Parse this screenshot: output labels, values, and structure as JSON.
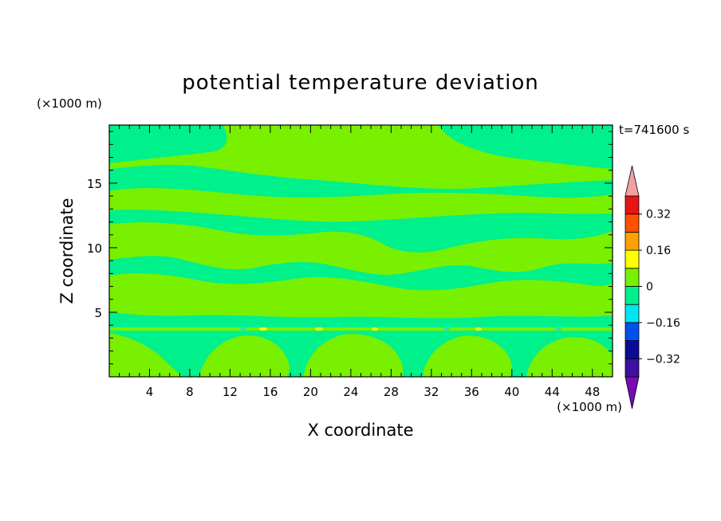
{
  "chart_data": {
    "type": "heatmap",
    "title": "potential temperature deviation",
    "xlabel": "X coordinate",
    "ylabel": "Z coordinate",
    "x_unit": "(×1000 m)",
    "y_unit": "(×1000 m)",
    "time_label": "t=741600 s",
    "xlim": [
      0,
      50
    ],
    "ylim": [
      0,
      19.5
    ],
    "x_ticks": [
      4,
      8,
      12,
      16,
      20,
      24,
      28,
      32,
      36,
      40,
      44,
      48
    ],
    "y_ticks": [
      5,
      10,
      15
    ],
    "colorbar": {
      "levels": [
        -0.4,
        -0.32,
        -0.24,
        -0.16,
        -0.08,
        0,
        0.08,
        0.16,
        0.24,
        0.32,
        0.4
      ],
      "colors": [
        "#3c10a0",
        "#0a0a96",
        "#0050f0",
        "#00e6f0",
        "#00f08c",
        "#78f000",
        "#ffff00",
        "#ffa000",
        "#ff5000",
        "#e61414"
      ],
      "under_color": "#7a0ab4",
      "over_color": "#f5a0a0",
      "tick_labels": [
        "0.32",
        "0.16",
        "0",
        "−0.16",
        "−0.32"
      ],
      "tick_values": [
        0.32,
        0.16,
        0,
        -0.16,
        -0.32
      ]
    },
    "field": {
      "background_color": "#00f08c",
      "dominant_colors": [
        "#78f000",
        "#00f08c"
      ],
      "note_levels": "values mostly between -0.08 and 0.08 with weak positive/negative bands"
    }
  }
}
